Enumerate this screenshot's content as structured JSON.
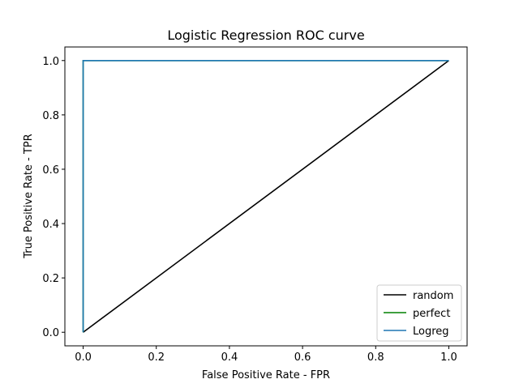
{
  "chart_data": {
    "type": "line",
    "title": "Logistic Regression ROC curve",
    "xlabel": "False Positive Rate - FPR",
    "ylabel": "True Positive Rate - TPR",
    "xlim": [
      -0.05,
      1.05
    ],
    "ylim": [
      -0.05,
      1.05
    ],
    "xticks": [
      0.0,
      0.2,
      0.4,
      0.6,
      0.8,
      1.0
    ],
    "yticks": [
      0.0,
      0.2,
      0.4,
      0.6,
      0.8,
      1.0
    ],
    "xtick_labels": [
      "0.0",
      "0.2",
      "0.4",
      "0.6",
      "0.8",
      "1.0"
    ],
    "ytick_labels": [
      "0.0",
      "0.2",
      "0.4",
      "0.6",
      "0.8",
      "1.0"
    ],
    "grid": false,
    "legend_position": "lower-right",
    "series": [
      {
        "name": "random",
        "color": "#000000",
        "x": [
          0.0,
          1.0
        ],
        "y": [
          0.0,
          1.0
        ]
      },
      {
        "name": "perfect",
        "color": "#008000",
        "x": [
          0.0,
          0.0,
          1.0
        ],
        "y": [
          0.0,
          1.0,
          1.0
        ]
      },
      {
        "name": "Logreg",
        "color": "#1f77b4",
        "x": [
          0.0,
          0.0,
          1.0
        ],
        "y": [
          0.0,
          1.0,
          1.0
        ]
      }
    ]
  }
}
